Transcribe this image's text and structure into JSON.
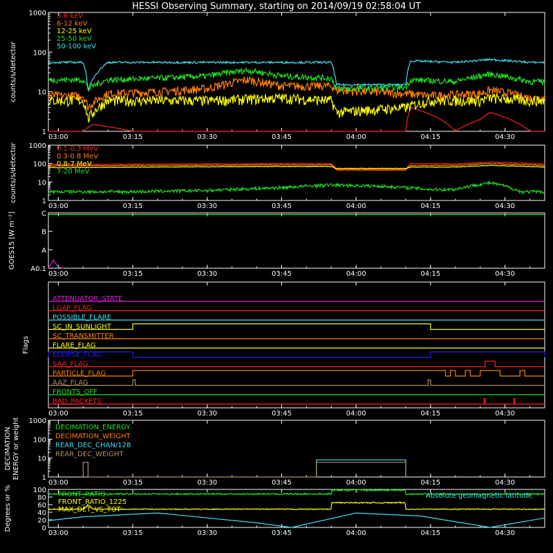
{
  "title": "HESSI Observing Summary, starting on 2014/09/19 02:58:04 UT",
  "time_ticks": [
    "03:00",
    "03:15",
    "03:30",
    "03:45",
    "04:00",
    "04:15",
    "04:30"
  ],
  "colors": {
    "bg": "#000000",
    "fg": "#ffffff",
    "red": "#ff2020",
    "orange": "#ff7f00",
    "yellow": "#ffff00",
    "green": "#20e020",
    "cyan": "#40e0f0",
    "magenta": "#e020e0",
    "blue": "#2020ff",
    "olive": "#b0a020",
    "tan": "#b09060"
  },
  "chart_data": [
    {
      "type": "line",
      "name": "low-energy-rates",
      "ylabel": "counts/s/detector",
      "y_scale": "log",
      "ylim": [
        1,
        1000
      ],
      "yticks": [
        "1",
        "10",
        "100",
        "1000"
      ],
      "x_range": [
        "02:58",
        "04:38"
      ],
      "series": [
        {
          "name": "3-6 keV",
          "color": "red",
          "x": [
            "02:58",
            "03:00",
            "03:05",
            "03:07",
            "03:15",
            "03:16",
            "03:30",
            "03:45",
            "03:55",
            "04:10",
            "04:11",
            "04:20",
            "04:25",
            "04:27",
            "04:35",
            "04:38"
          ],
          "y": [
            1,
            1,
            1,
            1.5,
            1,
            1,
            1,
            1,
            1,
            1,
            4,
            1,
            2,
            3,
            1,
            1
          ]
        },
        {
          "name": "6-12 keV",
          "color": "orange",
          "x": [
            "02:58",
            "03:00",
            "03:05",
            "03:06",
            "03:10",
            "03:20",
            "03:30",
            "03:38",
            "03:45",
            "03:55",
            "03:56",
            "04:10",
            "04:15",
            "04:25",
            "04:27",
            "04:35",
            "04:38"
          ],
          "y": [
            8,
            8,
            8,
            4,
            9,
            10,
            12,
            20,
            14,
            14,
            11,
            9,
            8,
            9,
            11,
            7,
            7
          ]
        },
        {
          "name": "12-25 keV",
          "color": "yellow",
          "x": [
            "02:58",
            "03:00",
            "03:05",
            "03:06",
            "03:10",
            "03:20",
            "03:30",
            "03:45",
            "03:55",
            "03:56",
            "04:10",
            "04:15",
            "04:25",
            "04:27",
            "04:35",
            "04:38"
          ],
          "y": [
            6,
            6,
            6,
            2,
            6,
            6,
            6,
            7,
            6,
            3,
            4,
            6,
            6,
            7,
            6,
            6
          ]
        },
        {
          "name": "25-50 keV",
          "color": "green",
          "x": [
            "02:58",
            "03:00",
            "03:05",
            "03:06",
            "03:10",
            "03:20",
            "03:30",
            "03:38",
            "03:45",
            "03:55",
            "03:56",
            "04:10",
            "04:11",
            "04:20",
            "04:27",
            "04:35",
            "04:38"
          ],
          "y": [
            20,
            20,
            20,
            12,
            20,
            22,
            25,
            35,
            25,
            22,
            12,
            13,
            20,
            18,
            28,
            18,
            18
          ]
        },
        {
          "name": "50-100 keV",
          "color": "cyan",
          "x": [
            "02:58",
            "03:00",
            "03:05",
            "03:06",
            "03:10",
            "03:20",
            "03:30",
            "03:45",
            "03:55",
            "03:56",
            "04:10",
            "04:11",
            "04:20",
            "04:27",
            "04:35",
            "04:38"
          ],
          "y": [
            55,
            55,
            55,
            10,
            55,
            55,
            55,
            55,
            55,
            15,
            15,
            60,
            55,
            65,
            55,
            55
          ]
        }
      ]
    },
    {
      "type": "line",
      "name": "high-energy-rates",
      "ylabel": "counts/s/detector",
      "y_scale": "log",
      "ylim": [
        1,
        1000
      ],
      "yticks": [
        "1",
        "10",
        "100",
        "1000"
      ],
      "x_range": [
        "02:58",
        "04:38"
      ],
      "series": [
        {
          "name": "0.1-0.3 MeV",
          "color": "red",
          "x": [
            "02:58",
            "03:20",
            "03:45",
            "03:55",
            "03:56",
            "04:10",
            "04:11",
            "04:20",
            "04:27",
            "04:38"
          ],
          "y": [
            90,
            95,
            100,
            100,
            50,
            50,
            100,
            95,
            120,
            95
          ]
        },
        {
          "name": "0.3-0.8 MeV",
          "color": "orange",
          "x": [
            "02:58",
            "03:20",
            "03:45",
            "03:55",
            "03:56",
            "04:10",
            "04:11",
            "04:20",
            "04:27",
            "04:38"
          ],
          "y": [
            75,
            80,
            85,
            85,
            45,
            45,
            80,
            80,
            100,
            80
          ]
        },
        {
          "name": "0.8-7 MeV",
          "color": "yellow",
          "x": [
            "02:58",
            "03:20",
            "03:45",
            "03:55",
            "03:56",
            "04:10",
            "04:11",
            "04:20",
            "04:27",
            "04:38"
          ],
          "y": [
            60,
            65,
            70,
            70,
            55,
            55,
            65,
            65,
            80,
            65
          ]
        },
        {
          "name": "7-20 MeV",
          "color": "green",
          "x": [
            "02:58",
            "03:15",
            "03:30",
            "03:45",
            "03:55",
            "04:05",
            "04:15",
            "04:20",
            "04:27",
            "04:33",
            "04:38"
          ],
          "y": [
            3,
            3,
            3.5,
            5,
            7,
            6,
            4,
            4,
            9,
            3,
            3
          ]
        }
      ]
    },
    {
      "type": "line",
      "name": "goes",
      "ylabel": "GOES15 [W m⁻²]",
      "ylim_classes": [
        "A",
        "B",
        "C"
      ],
      "ytick_labels": [
        "A0.1",
        "A",
        "B",
        "C"
      ],
      "series": [
        {
          "name": "GOES long",
          "color": "green",
          "x": [
            "02:58",
            "04:38"
          ],
          "y_class_fraction": [
            0.97,
            0.97
          ]
        },
        {
          "name": "GOES short",
          "color": "magenta",
          "x": [
            "02:58",
            "02:59",
            "03:00",
            "03:01"
          ],
          "y_class_fraction": [
            0.0,
            0.15,
            0.02,
            0.0
          ]
        }
      ]
    },
    {
      "type": "line",
      "name": "flags",
      "ylabel": "Flags",
      "series": [
        {
          "name": "ATTENUATOR_STATE",
          "color": "magenta",
          "on": []
        },
        {
          "name": "LGAP_FLAG",
          "color": "red",
          "on": []
        },
        {
          "name": "POSSIBLE_FLARE",
          "color": "cyan",
          "on": []
        },
        {
          "name": "SC_IN_SUNLIGHT",
          "color": "yellow",
          "on": [
            [
              "03:15",
              "04:15"
            ]
          ]
        },
        {
          "name": "SC_TRANSMITTER",
          "color": "orange",
          "on": []
        },
        {
          "name": "FLARE_FLAG",
          "color": "yellow",
          "on": []
        },
        {
          "name": "ECLIPSE_FLAG",
          "color": "blue",
          "on": [
            [
              "02:58",
              "03:15"
            ],
            [
              "04:15",
              "04:38"
            ]
          ]
        },
        {
          "name": "SAA_FLAG",
          "color": "red",
          "on": [
            [
              "04:26",
              "04:28"
            ]
          ]
        },
        {
          "name": "PARTICLE_FLAG",
          "color": "orange",
          "on": [
            [
              "03:15",
              "04:18"
            ],
            [
              "04:19",
              "04:20"
            ],
            [
              "04:22",
              "04:23"
            ],
            [
              "04:25",
              "04:29"
            ],
            [
              "04:33",
              "04:34"
            ]
          ]
        },
        {
          "name": "AAZ_FLAG",
          "color": "tan",
          "on": [
            [
              "03:15",
              "03:15.5"
            ],
            [
              "04:14.5",
              "04:15"
            ]
          ]
        },
        {
          "name": "FRONTS_OFF",
          "color": "green",
          "on": []
        },
        {
          "name": "BAD_PACKETS",
          "color": "red",
          "on": [
            [
              "04:25.8",
              "04:26"
            ],
            [
              "04:31.8",
              "04:32"
            ]
          ]
        }
      ]
    },
    {
      "type": "line",
      "name": "decimation",
      "ylabel": "DECIMATION ENERGY or weight",
      "y_scale": "log",
      "ylim": [
        1,
        1000
      ],
      "yticks": [
        "1",
        "10",
        "100",
        "1000"
      ],
      "series": [
        {
          "name": "DECIMATION_ENERGY",
          "color": "green",
          "x": [],
          "y": []
        },
        {
          "name": "DECIMATION_WEIGHT",
          "color": "orange",
          "x": [],
          "y": []
        },
        {
          "name": "REAR_DEC_CHAN/128",
          "color": "cyan",
          "x": [
            "03:52",
            "03:52",
            "04:10",
            "04:10"
          ],
          "y": [
            1,
            8,
            8,
            1
          ]
        },
        {
          "name": "REAR_DEC_WEIGHT",
          "color": "tan",
          "x": [
            "03:05",
            "03:05",
            "03:06",
            "03:06",
            "03:52",
            "03:52",
            "04:10",
            "04:10"
          ],
          "y": [
            1,
            6,
            6,
            1,
            1,
            6,
            6,
            1
          ]
        }
      ]
    },
    {
      "type": "line",
      "name": "ratios",
      "ylabel": "Degrees or %",
      "ylim": [
        0,
        100
      ],
      "yticks": [
        "0",
        "20",
        "40",
        "60",
        "80",
        "100"
      ],
      "series": [
        {
          "name": "FRONT_RATIO",
          "color": "green",
          "x": [
            "02:58",
            "03:55",
            "03:55",
            "04:10",
            "04:10",
            "04:38"
          ],
          "y": [
            88,
            88,
            98,
            98,
            88,
            88
          ]
        },
        {
          "name": "FRONT_RATIO_1225",
          "color": "yellow",
          "x": [],
          "y": []
        },
        {
          "name": "MAX_DET_VS_TOT",
          "color": "yellow",
          "x": [
            "02:58",
            "03:05",
            "03:06",
            "03:07",
            "03:55",
            "03:55",
            "04:10",
            "04:10",
            "04:38"
          ],
          "y": [
            48,
            48,
            60,
            48,
            48,
            65,
            65,
            48,
            48
          ]
        },
        {
          "name": "Absolute geomagnetic latitude",
          "color": "cyan",
          "x": [
            "02:58",
            "03:05",
            "03:20",
            "03:40",
            "03:47",
            "04:00",
            "04:13",
            "04:27",
            "04:38"
          ],
          "y": [
            18,
            28,
            38,
            12,
            0,
            38,
            30,
            0,
            25
          ]
        }
      ]
    }
  ]
}
